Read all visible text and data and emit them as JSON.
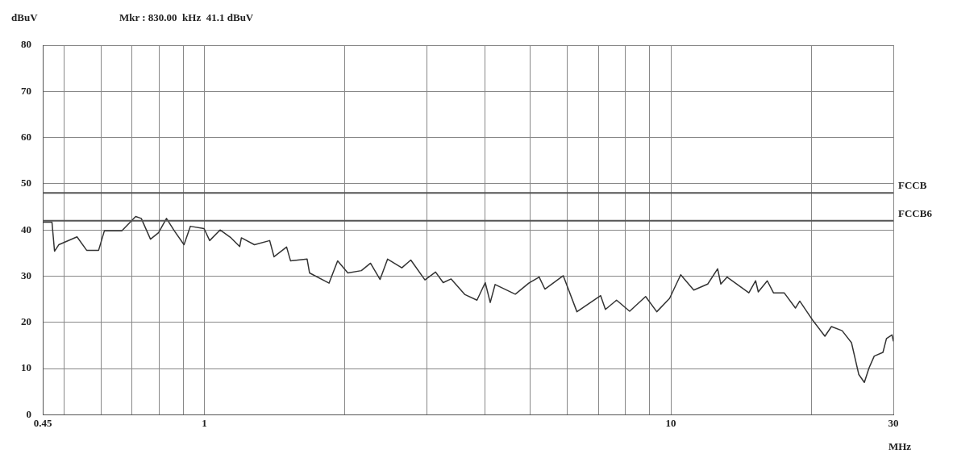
{
  "chart_data": {
    "type": "line",
    "ylabel": "dBuV",
    "xlabel": "MHz",
    "annotations": [
      "Mkr : 830.00  kHz  41.1 dBuV"
    ],
    "xlim": [
      0.45,
      30
    ],
    "ylim": [
      0,
      80
    ],
    "xticks": [
      0.45,
      {
        "value": 0.5,
        "label": null
      },
      {
        "value": 0.6,
        "label": null
      },
      {
        "value": 0.7,
        "label": null
      },
      {
        "value": 0.8,
        "label": null
      },
      {
        "value": 0.9,
        "label": null
      },
      1,
      {
        "value": 2,
        "label": null
      },
      {
        "value": 3,
        "label": null
      },
      {
        "value": 4,
        "label": null
      },
      {
        "value": 5,
        "label": null
      },
      {
        "value": 6,
        "label": null
      },
      {
        "value": 7,
        "label": null
      },
      {
        "value": 8,
        "label": null
      },
      {
        "value": 9,
        "label": null
      },
      10,
      {
        "value": 20,
        "label": null
      },
      30
    ],
    "yticks": [
      0,
      10,
      20,
      30,
      40,
      50,
      60,
      70,
      80
    ],
    "log": "x",
    "grid": true,
    "legend": false,
    "marker": "none",
    "line_style": "solid",
    "ref_lines": [
      {
        "axis": "y",
        "value": 48,
        "label": "FCCB",
        "color": "#555555"
      },
      {
        "axis": "y",
        "value": 42,
        "label": "FCCB6",
        "color": "#555555"
      }
    ],
    "series": [
      {
        "color": "#333333",
        "x": [
          0.45,
          0.471,
          0.477,
          0.487,
          0.533,
          0.559,
          0.593,
          0.61,
          0.665,
          0.712,
          0.732,
          0.766,
          0.797,
          0.829,
          0.862,
          0.904,
          0.933,
          0.998,
          1.026,
          1.08,
          1.14,
          1.19,
          1.2,
          1.28,
          1.38,
          1.41,
          1.5,
          1.53,
          1.66,
          1.68,
          1.85,
          1.93,
          2.03,
          2.17,
          2.27,
          2.38,
          2.47,
          2.65,
          2.77,
          2.97,
          3.13,
          3.25,
          3.38,
          3.62,
          3.84,
          4.0,
          4.1,
          4.2,
          4.64,
          4.96,
          5.22,
          5.37,
          5.88,
          6.29,
          7.07,
          7.24,
          7.65,
          8.16,
          8.83,
          9.33,
          9.94,
          10.5,
          11.2,
          12.0,
          12.6,
          12.8,
          13.2,
          14.7,
          15.2,
          15.4,
          16.1,
          16.6,
          17.5,
          18.5,
          18.9,
          20.2,
          21.4,
          22.1,
          23.3,
          24.4,
          25.3,
          26.0,
          26.6,
          27.3,
          28.5,
          29.0,
          29.8,
          30
        ],
        "values": [
          41.7,
          41.7,
          35.4,
          36.8,
          38.5,
          35.6,
          35.6,
          39.8,
          39.8,
          42.9,
          42.5,
          38,
          39.4,
          42.5,
          39.8,
          36.8,
          40.8,
          40.3,
          37.7,
          40,
          38.3,
          36.4,
          38.3,
          36.8,
          37.7,
          34.2,
          36.3,
          33.3,
          33.7,
          30.7,
          28.5,
          33.3,
          30.7,
          31.2,
          32.8,
          29.3,
          33.7,
          31.8,
          33.5,
          29.2,
          30.9,
          28.6,
          29.4,
          26,
          24.8,
          28.6,
          24.3,
          28.2,
          26.1,
          28.5,
          29.8,
          27.2,
          30.1,
          22.3,
          25.8,
          22.8,
          24.8,
          22.4,
          25.6,
          22.3,
          25.2,
          30.3,
          27,
          28.3,
          31.6,
          28.3,
          29.8,
          26.4,
          29,
          26.6,
          29,
          26.4,
          26.4,
          23.1,
          24.6,
          20.3,
          17,
          19.1,
          18.2,
          15.6,
          8.7,
          7,
          10.1,
          12.7,
          13.5,
          16.5,
          17.3,
          16
        ]
      }
    ]
  }
}
